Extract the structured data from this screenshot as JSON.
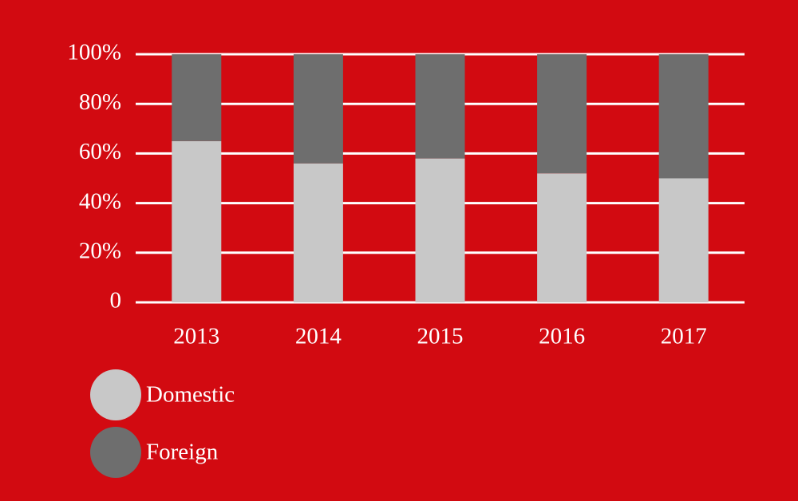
{
  "chart_data": {
    "type": "stacked_bar",
    "categories": [
      "2013",
      "2014",
      "2015",
      "2016",
      "2017"
    ],
    "series": [
      {
        "name": "Domestic",
        "color": "#c8c8c8",
        "values": [
          65,
          56,
          58,
          52,
          50
        ]
      },
      {
        "name": "Foreign",
        "color": "#6e6e6e",
        "values": [
          35,
          44,
          42,
          48,
          50
        ]
      }
    ],
    "ylim": [
      0,
      100
    ],
    "yticks": [
      0,
      {
        "value": 20,
        "label": "20%"
      },
      {
        "value": 40,
        "label": "40%"
      },
      {
        "value": 60,
        "label": "60%"
      },
      {
        "value": 80,
        "label": "80%"
      },
      {
        "value": 100,
        "label": "100%"
      }
    ],
    "grid": true
  }
}
